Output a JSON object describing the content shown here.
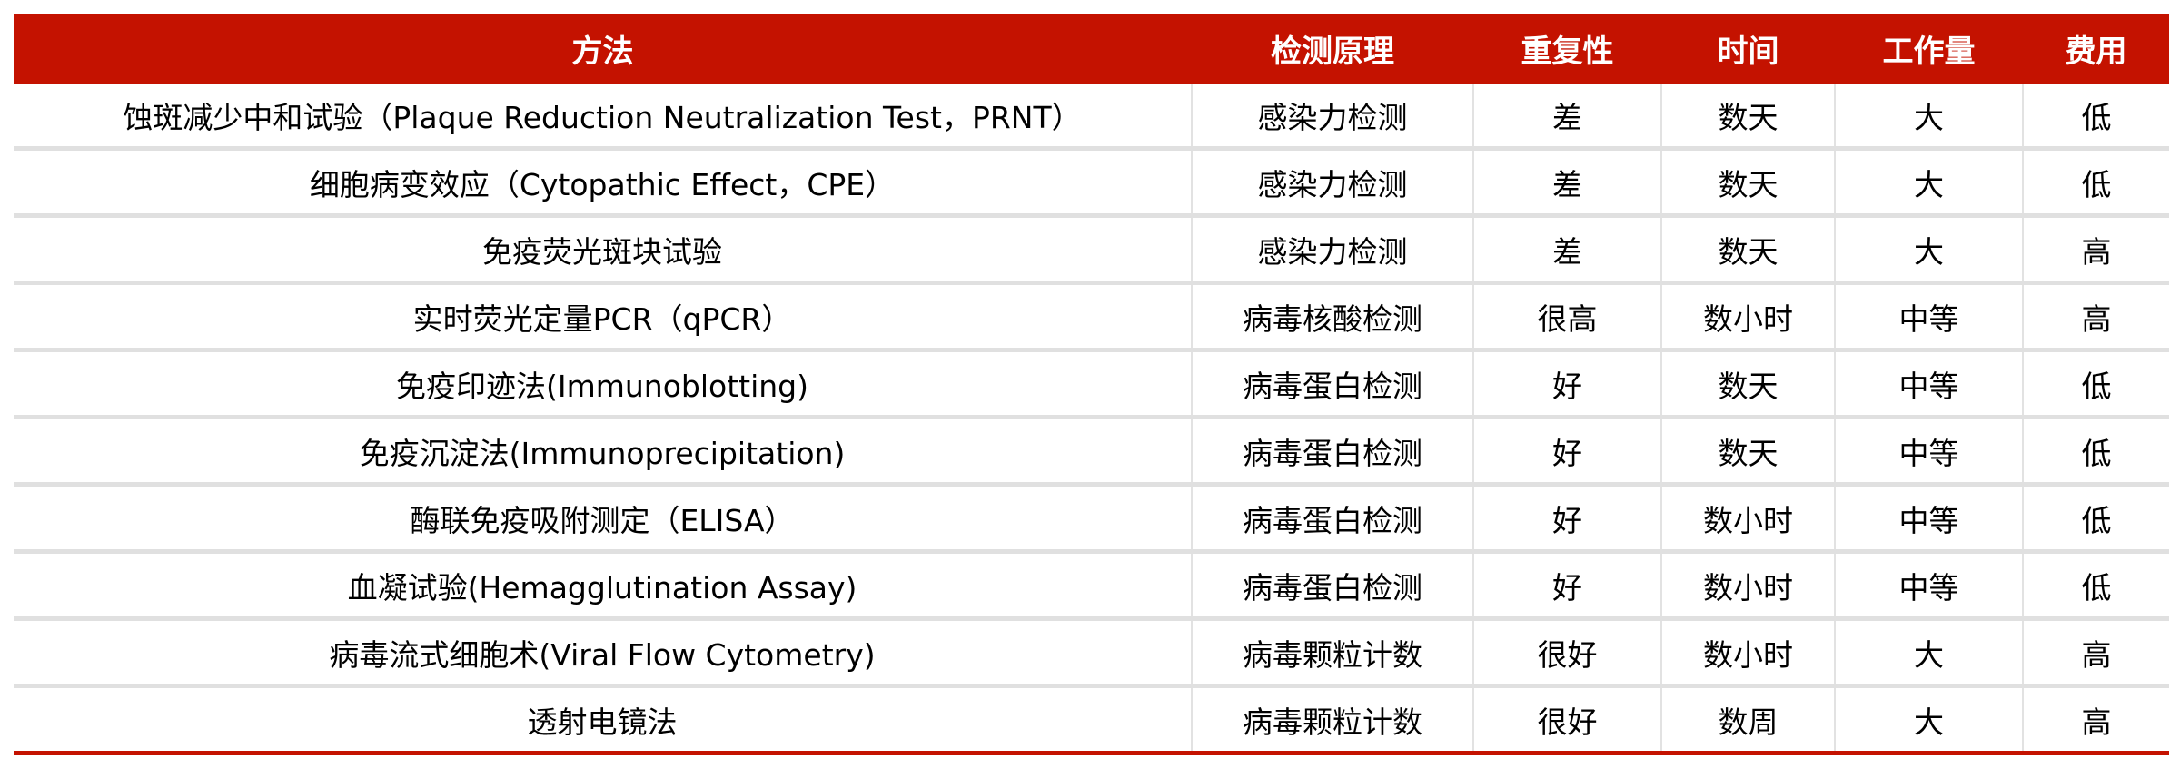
{
  "headers": [
    "方法",
    "检测原理",
    "重复性",
    "时间",
    "工作量",
    "费用"
  ],
  "rows": [
    [
      "蚀斑减少中和试验（Plaque Reduction Neutralization Test，PRNT）",
      "感染力检测",
      "差",
      "数天",
      "大",
      "低"
    ],
    [
      "细胞病变效应（Cytopathic Effect，CPE）",
      "感染力检测",
      "差",
      "数天",
      "大",
      "低"
    ],
    [
      "免疫荧光斑块试验",
      "感染力检测",
      "差",
      "数天",
      "大",
      "高"
    ],
    [
      "实时荧光定量PCR（qPCR）",
      "病毒核酸检测",
      "很高",
      "数小时",
      "中等",
      "高"
    ],
    [
      "免疫印迹法(Immunoblotting)",
      "病毒蛋白检测",
      "好",
      "数天",
      "中等",
      "低"
    ],
    [
      "免疫沉淀法(Immunoprecipitation)",
      "病毒蛋白检测",
      "好",
      "数天",
      "中等",
      "低"
    ],
    [
      "酶联免疫吸附测定（ELISA）",
      "病毒蛋白检测",
      "好",
      "数小时",
      "中等",
      "低"
    ],
    [
      "血凝试验(Hemagglutination  Assay)",
      "病毒蛋白检测",
      "好",
      "数小时",
      "中等",
      "低"
    ],
    [
      "病毒流式细胞术(Viral Flow Cytometry)",
      "病毒颗粒计数",
      "很好",
      "数小时",
      "大",
      "高"
    ],
    [
      "透射电镜法",
      "病毒颗粒计数",
      "很好",
      "数周",
      "大",
      "高"
    ]
  ],
  "colors": {
    "header_bg": "#c41200",
    "header_text": "#ffffff",
    "row_separator": "#e0e0e0"
  }
}
